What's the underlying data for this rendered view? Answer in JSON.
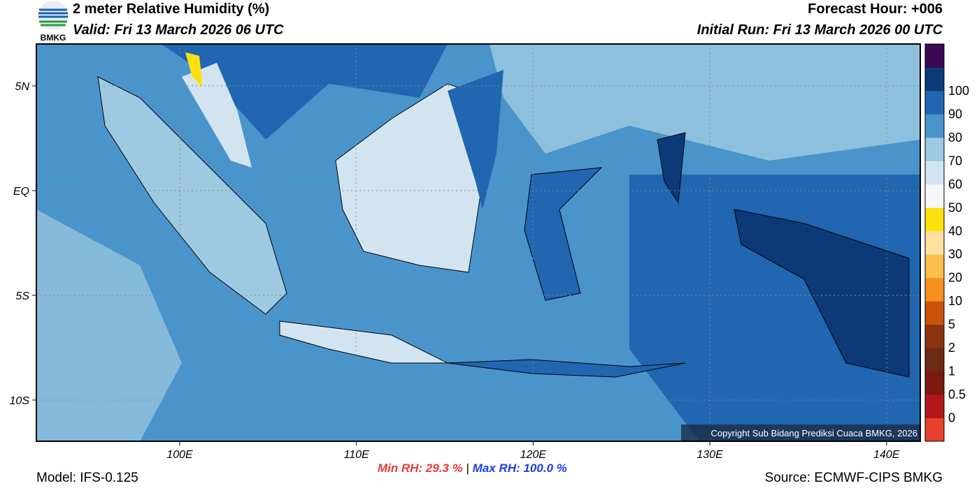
{
  "header": {
    "title": "2 meter Relative Humidity (%)",
    "valid": "Valid: Fri 13 March 2026 06 UTC",
    "forecast_hour": "Forecast Hour: +006",
    "initial_run": "Initial Run: Fri 13 March 2026 00 UTC",
    "logo_text": "BMKG"
  },
  "map": {
    "lat_labels": [
      "5N",
      "EQ",
      "5S",
      "10S"
    ],
    "lon_labels": [
      "100E",
      "110E",
      "120E",
      "130E",
      "140E"
    ],
    "copyright": "Copyright Sub Bidang Prediksi Cuaca BMKG, 2026"
  },
  "colorbar": {
    "labels": [
      "0",
      "0.5",
      "1",
      "2",
      "5",
      "10",
      "20",
      "30",
      "40",
      "50",
      "60",
      "70",
      "80",
      "90",
      "100"
    ],
    "colors": [
      "#e8402c",
      "#b3161b",
      "#7c1a10",
      "#6b2a14",
      "#8c3310",
      "#c9520c",
      "#f5901e",
      "#fbbd4c",
      "#fee0a0",
      "#fde10e",
      "#f7f7f7",
      "#d3e4f1",
      "#9ecae1",
      "#4a94cc",
      "#2066b0",
      "#0c3a78",
      "#3a0855"
    ]
  },
  "footer": {
    "min_rh": "Min RH:  29.3 %",
    "separator": "|",
    "max_rh": "Max RH: 100.0 %",
    "model": "Model: IFS-0.125",
    "source": "Source: ECMWF-CIPS BMKG"
  }
}
